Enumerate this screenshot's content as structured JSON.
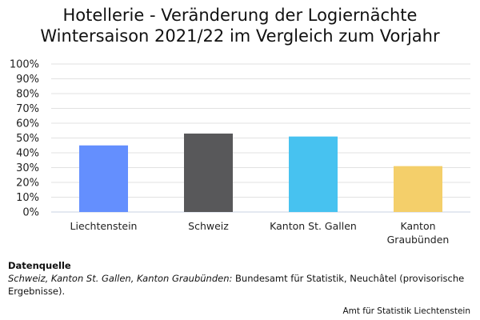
{
  "chart_data": {
    "type": "bar",
    "title_line1": "Hotellerie - Veränderung der Logiernächte",
    "title_line2": "Wintersaison 2021/22 im Vergleich zum Vorjahr",
    "categories": [
      "Liechtenstein",
      "Schweiz",
      "Kanton St. Gallen",
      "Kanton Graubünden"
    ],
    "category_lines": [
      [
        "Liechtenstein"
      ],
      [
        "Schweiz"
      ],
      [
        "Kanton St. Gallen"
      ],
      [
        "Kanton",
        "Graubünden"
      ]
    ],
    "values": [
      45,
      53,
      51,
      31
    ],
    "colors": [
      "#648ffe",
      "#58585a",
      "#47c2f0",
      "#f4cf6a"
    ],
    "xlabel": "",
    "ylabel": "",
    "ylim": [
      0,
      100
    ],
    "yticks": [
      "0%",
      "10%",
      "20%",
      "30%",
      "40%",
      "50%",
      "60%",
      "70%",
      "80%",
      "90%",
      "100%"
    ],
    "grid": true,
    "legend": "none"
  },
  "source": {
    "heading": "Datenquelle",
    "italic_part": "Schweiz, Kanton St. Gallen, Kanton Graubünden:",
    "text": " Bundesamt für Statistik, Neuchâtel (provisorische Ergebnisse)."
  },
  "credit": "Amt für Statistik Liechtenstein"
}
